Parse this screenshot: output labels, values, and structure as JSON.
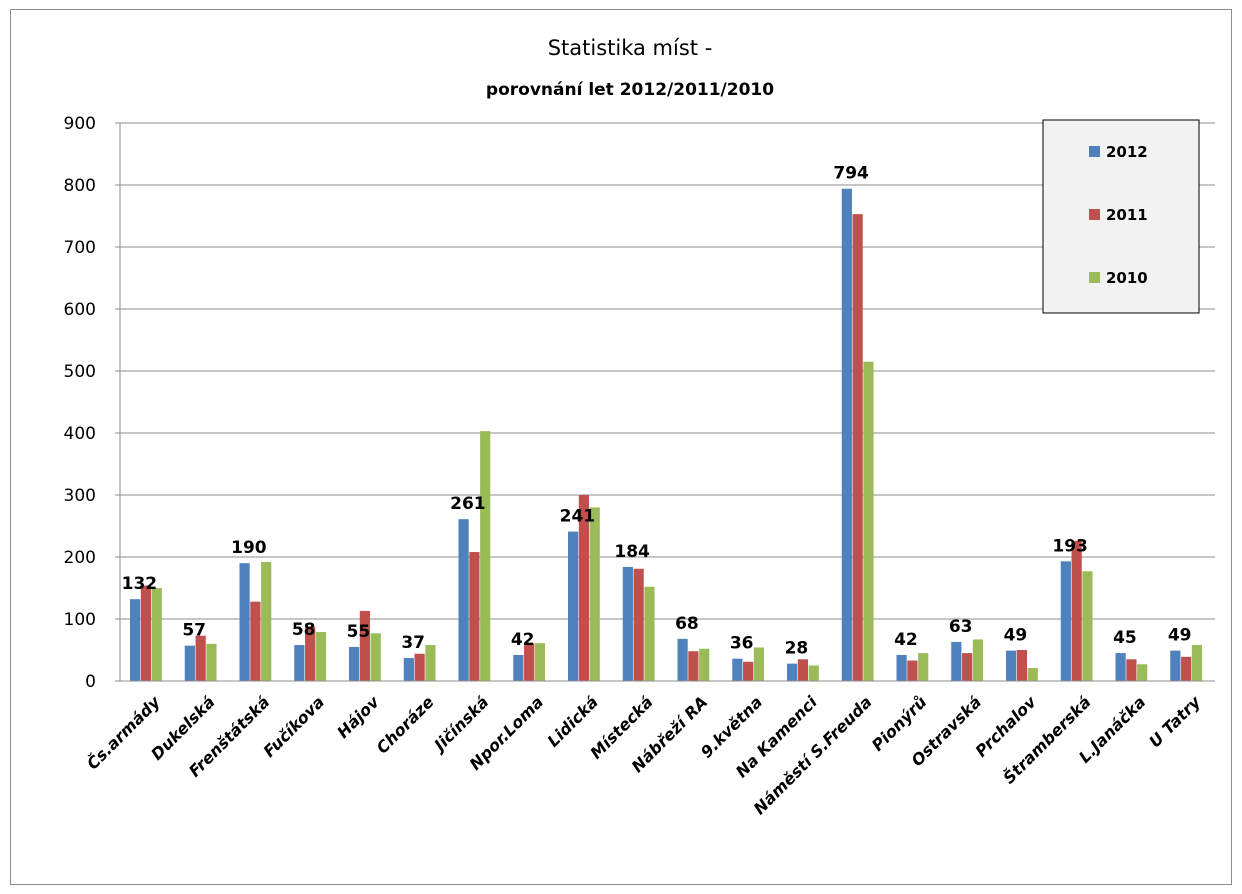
{
  "chart_data": {
    "type": "bar",
    "title": "Statistika míst  -",
    "subtitle": "porovnání let 2012/2011/2010",
    "xlabel": "",
    "ylabel": "",
    "ylim": [
      0,
      900
    ],
    "yticks": [
      0,
      100,
      200,
      300,
      400,
      500,
      600,
      700,
      800,
      900
    ],
    "grid": true,
    "legend_position": "top-right",
    "categories": [
      "Čs.armády",
      "Dukelská",
      "Frenštátská",
      "Fučíkova",
      "Hájov",
      "Choráze",
      "Jičínská",
      "Npor.Loma",
      "Lidická",
      "Místecká",
      "Nábřeží RA",
      "9.května",
      "Na Kamenci",
      "Náměstí S.Freuda",
      "Pionýrů",
      "Ostravská",
      "Prchalov",
      "Štramberská",
      "L.Janáčka",
      "U Tatry"
    ],
    "series": [
      {
        "name": "2012",
        "color": "#4f81bd",
        "values": [
          132,
          57,
          190,
          58,
          55,
          37,
          261,
          42,
          241,
          184,
          68,
          36,
          28,
          794,
          42,
          63,
          49,
          193,
          45,
          49
        ]
      },
      {
        "name": "2011",
        "color": "#c0504d",
        "values": [
          154,
          73,
          128,
          88,
          113,
          44,
          208,
          61,
          300,
          181,
          48,
          31,
          35,
          753,
          33,
          45,
          50,
          226,
          35,
          39
        ]
      },
      {
        "name": "2010",
        "color": "#9bbb59",
        "values": [
          150,
          60,
          192,
          79,
          77,
          58,
          403,
          61,
          280,
          152,
          52,
          54,
          25,
          515,
          45,
          67,
          21,
          177,
          27,
          58
        ]
      }
    ],
    "data_labels": [
      "132",
      "57",
      "190",
      "58",
      "55",
      "37",
      "261",
      "42",
      "241",
      "184",
      "68",
      "36",
      "28",
      "794",
      "42",
      "63",
      "49",
      "193",
      "45",
      "49"
    ]
  }
}
